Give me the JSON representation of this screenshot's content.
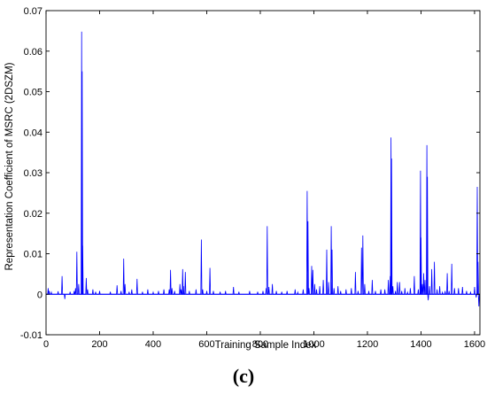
{
  "figure": {
    "panel_label": "(c)"
  },
  "chart_data": {
    "type": "line",
    "title": "",
    "xlabel": "Training Sample Index",
    "ylabel": "Representation Coefficient of MSRC (2DSZM)",
    "xlim": [
      0,
      1620
    ],
    "ylim": [
      -0.01,
      0.07
    ],
    "xticks": [
      0,
      200,
      400,
      600,
      800,
      1000,
      1200,
      1400,
      1600
    ],
    "yticks": [
      -0.01,
      0,
      0.01,
      0.02,
      0.03,
      0.04,
      0.05,
      0.06,
      0.07
    ],
    "ytick_labels": [
      "-0.01",
      "0",
      "0.01",
      "0.02",
      "0.03",
      "0.04",
      "0.05",
      "0.06",
      "0.07"
    ],
    "grid": false,
    "line_color": "#0000ff",
    "series": [
      {
        "values": [
          [
            8,
            0.0015
          ],
          [
            12,
            0.0008
          ],
          [
            20,
            0.0005
          ],
          [
            45,
            0.0007
          ],
          [
            60,
            0.0045
          ],
          [
            70,
            -0.0012
          ],
          [
            90,
            0.0006
          ],
          [
            105,
            0.0008
          ],
          [
            110,
            0.0015
          ],
          [
            115,
            0.0105
          ],
          [
            122,
            0.0025
          ],
          [
            133,
            0.0648
          ],
          [
            134,
            0.046
          ],
          [
            135,
            0.055
          ],
          [
            137,
            0.012
          ],
          [
            150,
            0.004
          ],
          [
            155,
            0.0012
          ],
          [
            175,
            0.0012
          ],
          [
            185,
            0.0006
          ],
          [
            200,
            0.0008
          ],
          [
            240,
            0.0006
          ],
          [
            265,
            0.0022
          ],
          [
            280,
            0.0008
          ],
          [
            290,
            0.0088
          ],
          [
            295,
            0.0025
          ],
          [
            310,
            0.0006
          ],
          [
            320,
            0.0012
          ],
          [
            340,
            0.0038
          ],
          [
            360,
            0.0006
          ],
          [
            380,
            0.0012
          ],
          [
            400,
            0.0005
          ],
          [
            420,
            0.0008
          ],
          [
            440,
            0.0012
          ],
          [
            460,
            0.0012
          ],
          [
            465,
            0.006
          ],
          [
            470,
            0.0015
          ],
          [
            480,
            0.0008
          ],
          [
            500,
            0.0025
          ],
          [
            505,
            0.0012
          ],
          [
            510,
            0.0062
          ],
          [
            513,
            0.002
          ],
          [
            520,
            0.0055
          ],
          [
            535,
            0.0008
          ],
          [
            560,
            0.0012
          ],
          [
            580,
            0.0135
          ],
          [
            585,
            0.0012
          ],
          [
            600,
            0.0008
          ],
          [
            612,
            0.0065
          ],
          [
            625,
            0.0008
          ],
          [
            650,
            0.0006
          ],
          [
            670,
            0.0008
          ],
          [
            700,
            0.0018
          ],
          [
            720,
            0.0006
          ],
          [
            760,
            0.0008
          ],
          [
            790,
            0.0006
          ],
          [
            810,
            0.0008
          ],
          [
            822,
            0.0015
          ],
          [
            826,
            0.0168
          ],
          [
            832,
            0.0018
          ],
          [
            845,
            0.0025
          ],
          [
            860,
            0.0008
          ],
          [
            880,
            0.0006
          ],
          [
            900,
            0.0008
          ],
          [
            930,
            0.0012
          ],
          [
            940,
            0.0005
          ],
          [
            960,
            0.0012
          ],
          [
            975,
            0.0255
          ],
          [
            978,
            0.018
          ],
          [
            982,
            0.0015
          ],
          [
            992,
            0.007
          ],
          [
            996,
            0.006
          ],
          [
            1003,
            0.0025
          ],
          [
            1010,
            0.0012
          ],
          [
            1022,
            0.002
          ],
          [
            1035,
            0.0035
          ],
          [
            1048,
            0.011
          ],
          [
            1055,
            0.003
          ],
          [
            1065,
            0.0168
          ],
          [
            1068,
            0.011
          ],
          [
            1075,
            0.0015
          ],
          [
            1090,
            0.002
          ],
          [
            1100,
            0.0008
          ],
          [
            1120,
            0.0012
          ],
          [
            1140,
            0.0015
          ],
          [
            1155,
            0.0055
          ],
          [
            1165,
            0.0008
          ],
          [
            1178,
            0.0115
          ],
          [
            1183,
            0.0145
          ],
          [
            1190,
            0.0025
          ],
          [
            1205,
            0.0008
          ],
          [
            1218,
            0.0035
          ],
          [
            1230,
            0.0008
          ],
          [
            1250,
            0.0012
          ],
          [
            1265,
            0.0012
          ],
          [
            1278,
            0.0035
          ],
          [
            1285,
            0.0045
          ],
          [
            1288,
            0.0387
          ],
          [
            1290,
            0.0335
          ],
          [
            1295,
            0.002
          ],
          [
            1305,
            0.0008
          ],
          [
            1312,
            0.003
          ],
          [
            1320,
            0.003
          ],
          [
            1328,
            0.0008
          ],
          [
            1340,
            0.0015
          ],
          [
            1350,
            0.0005
          ],
          [
            1360,
            0.0015
          ],
          [
            1375,
            0.0045
          ],
          [
            1390,
            0.0012
          ],
          [
            1398,
            0.0305
          ],
          [
            1400,
            0.014
          ],
          [
            1405,
            0.0025
          ],
          [
            1410,
            0.0052
          ],
          [
            1415,
            0.0035
          ],
          [
            1422,
            0.0368
          ],
          [
            1424,
            0.029
          ],
          [
            1427,
            -0.0015
          ],
          [
            1432,
            0.002
          ],
          [
            1440,
            0.0062
          ],
          [
            1450,
            0.008
          ],
          [
            1460,
            0.0012
          ],
          [
            1470,
            0.002
          ],
          [
            1480,
            0.0005
          ],
          [
            1490,
            0.0008
          ],
          [
            1498,
            0.0052
          ],
          [
            1505,
            0.0008
          ],
          [
            1515,
            0.0075
          ],
          [
            1525,
            0.0015
          ],
          [
            1540,
            0.0015
          ],
          [
            1555,
            0.0018
          ],
          [
            1570,
            0.0008
          ],
          [
            1585,
            0.0005
          ],
          [
            1600,
            0.0018
          ],
          [
            1606,
            -0.0008
          ],
          [
            1610,
            0.0265
          ],
          [
            1613,
            0.008
          ],
          [
            1616,
            -0.003
          ]
        ]
      }
    ]
  }
}
